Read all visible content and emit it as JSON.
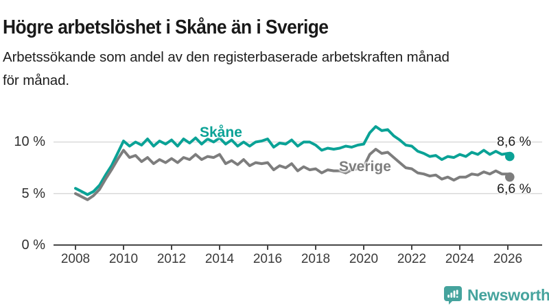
{
  "header": {
    "title": "Högre arbetslöshet i Skåne än i Sverige",
    "subtitle_line1": "Arbetssökande som andel av den registerbaserade arbetskraften månad",
    "subtitle_line2": "för månad."
  },
  "chart_data": {
    "type": "line",
    "title": "Högre arbetslöshet i Skåne än i Sverige",
    "xlabel": "",
    "ylabel": "",
    "grid": "horizontal",
    "legend_position": "inline-labels",
    "ylim": [
      0,
      14
    ],
    "xlim": [
      2007.1,
      2027.4
    ],
    "y_ticks": [
      "0 %",
      "5 %",
      "10 %"
    ],
    "y_tick_values": [
      0,
      5,
      10
    ],
    "x_ticks": [
      2008,
      2010,
      2012,
      2014,
      2016,
      2018,
      2020,
      2022,
      2024,
      2026
    ],
    "colors": {
      "grid": "#d9d9d9",
      "axis": "#454545"
    },
    "x": [
      2008.0,
      2008.25,
      2008.5,
      2008.75,
      2009.0,
      2009.25,
      2009.5,
      2009.75,
      2010.0,
      2010.25,
      2010.5,
      2010.75,
      2011.0,
      2011.25,
      2011.5,
      2011.75,
      2012.0,
      2012.25,
      2012.5,
      2012.75,
      2013.0,
      2013.25,
      2013.5,
      2013.75,
      2014.0,
      2014.25,
      2014.5,
      2014.75,
      2015.0,
      2015.25,
      2015.5,
      2015.75,
      2016.0,
      2016.25,
      2016.5,
      2016.75,
      2017.0,
      2017.25,
      2017.5,
      2017.75,
      2018.0,
      2018.25,
      2018.5,
      2018.75,
      2019.0,
      2019.25,
      2019.5,
      2019.75,
      2020.0,
      2020.25,
      2020.5,
      2020.75,
      2021.0,
      2021.25,
      2021.5,
      2021.75,
      2022.0,
      2022.25,
      2022.5,
      2022.75,
      2023.0,
      2023.25,
      2023.5,
      2023.75,
      2024.0,
      2024.25,
      2024.5,
      2024.75,
      2025.0,
      2025.25,
      2025.5,
      2025.75,
      2026.0,
      2026.08
    ],
    "series": [
      {
        "name": "Skåne",
        "color": "#0aa296",
        "end_label": "8,6 %",
        "end_value": 8.6,
        "values": [
          5.5,
          5.2,
          4.9,
          5.2,
          5.8,
          6.8,
          7.7,
          8.9,
          10.1,
          9.6,
          10.0,
          9.7,
          10.3,
          9.6,
          10.1,
          9.8,
          10.2,
          9.6,
          10.3,
          9.9,
          10.4,
          9.8,
          10.3,
          10.0,
          10.4,
          9.8,
          10.2,
          9.6,
          10.0,
          9.6,
          10.0,
          10.1,
          10.3,
          9.5,
          9.9,
          9.8,
          10.2,
          9.6,
          10.0,
          10.0,
          9.7,
          9.2,
          9.4,
          9.3,
          9.4,
          9.6,
          9.5,
          9.7,
          9.8,
          10.9,
          11.5,
          11.1,
          11.2,
          10.6,
          10.2,
          9.7,
          9.6,
          9.1,
          8.9,
          8.6,
          8.7,
          8.3,
          8.6,
          8.5,
          8.8,
          8.6,
          9.0,
          8.8,
          9.2,
          8.8,
          9.1,
          8.8,
          8.9,
          8.6
        ]
      },
      {
        "name": "Sverige",
        "color": "#7d7d7d",
        "end_label": "6,6 %",
        "end_value": 6.6,
        "values": [
          5.0,
          4.7,
          4.4,
          4.8,
          5.4,
          6.4,
          7.3,
          8.3,
          9.2,
          8.5,
          8.7,
          8.1,
          8.5,
          7.9,
          8.3,
          8.0,
          8.4,
          8.0,
          8.5,
          8.3,
          8.8,
          8.3,
          8.6,
          8.5,
          8.8,
          7.9,
          8.2,
          7.8,
          8.3,
          7.7,
          8.0,
          7.9,
          8.0,
          7.3,
          7.7,
          7.5,
          7.9,
          7.2,
          7.6,
          7.3,
          7.4,
          7.0,
          7.3,
          7.2,
          7.2,
          7.0,
          7.3,
          7.4,
          7.6,
          8.8,
          9.3,
          8.9,
          9.0,
          8.5,
          8.0,
          7.5,
          7.4,
          7.0,
          6.9,
          6.7,
          6.8,
          6.4,
          6.6,
          6.3,
          6.6,
          6.6,
          6.9,
          6.8,
          7.1,
          6.9,
          7.2,
          6.9,
          6.9,
          6.6
        ]
      }
    ]
  },
  "footer": {
    "logo_text": "Newsworthy",
    "logo_color": "#45a39d",
    "logo_icon": "bar-chart-speech-bubble-icon"
  }
}
